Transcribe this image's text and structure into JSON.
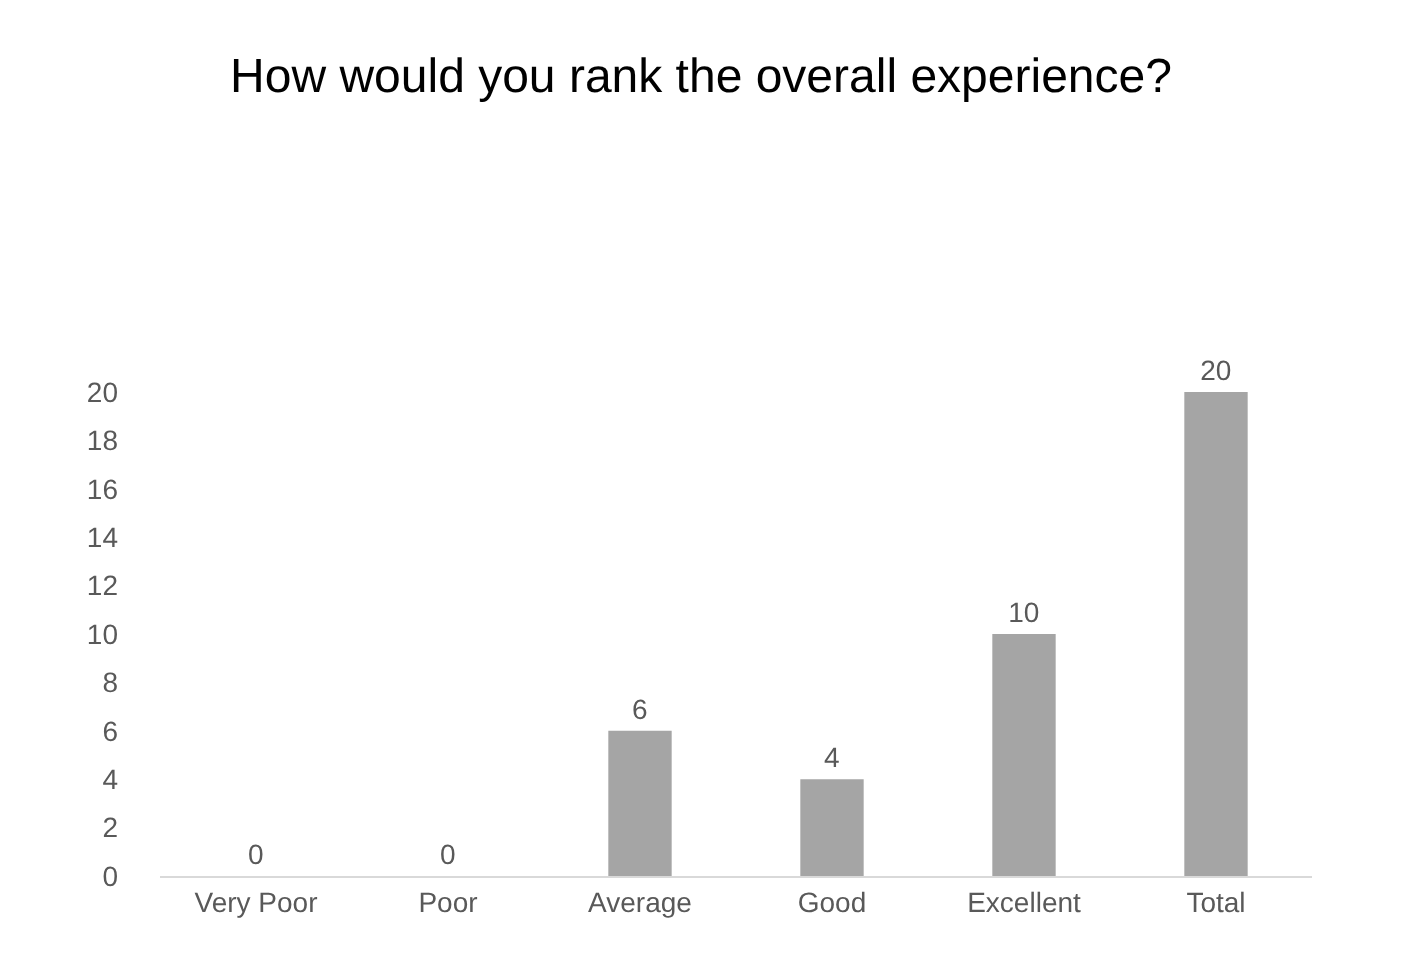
{
  "chart_data": {
    "type": "bar",
    "title": "How would you rank the overall experience?",
    "categories": [
      "Very Poor",
      "Poor",
      "Average",
      "Good",
      "Excellent",
      "Total"
    ],
    "values": [
      0,
      0,
      6,
      4,
      10,
      20
    ],
    "color": "#a5a5a5",
    "ylim": [
      0,
      20
    ],
    "yticks": [
      0,
      2,
      4,
      6,
      8,
      10,
      12,
      14,
      16,
      18,
      20
    ],
    "grid": false,
    "data_labels": true
  }
}
